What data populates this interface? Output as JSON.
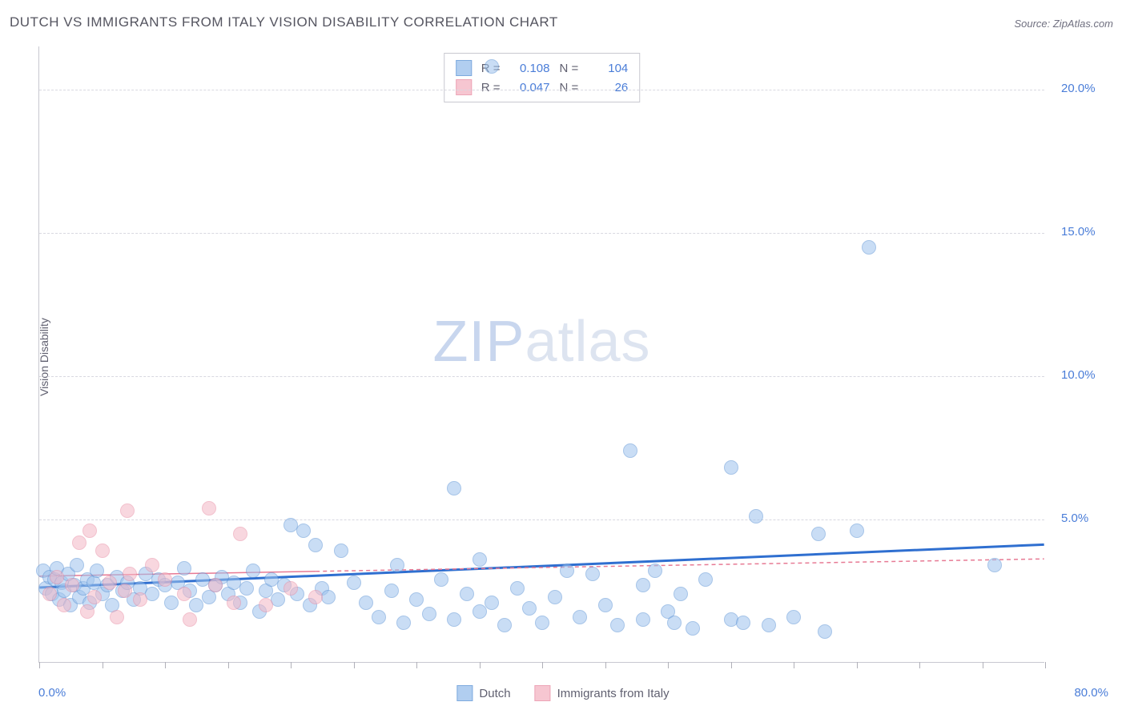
{
  "title": "DUTCH VS IMMIGRANTS FROM ITALY VISION DISABILITY CORRELATION CHART",
  "source": "Source: ZipAtlas.com",
  "y_axis_title": "Vision Disability",
  "watermark": {
    "bold": "ZIP",
    "light": "atlas"
  },
  "chart": {
    "type": "scatter",
    "background_color": "#ffffff",
    "grid_color": "#d8d8e0",
    "axis_color": "#c8c8d0",
    "text_color": "#606070",
    "value_color": "#4a7dd8",
    "xlim": [
      0,
      80
    ],
    "ylim": [
      0,
      21.5
    ],
    "x_ticks": [
      0,
      5,
      10,
      15,
      20,
      25,
      30,
      35,
      40,
      45,
      50,
      55,
      60,
      65,
      70,
      75,
      80
    ],
    "x_tick_labels": {
      "0": "0.0%",
      "80": "80.0%"
    },
    "y_grid": [
      5,
      10,
      15,
      20
    ],
    "y_tick_labels": {
      "5": "5.0%",
      "10": "10.0%",
      "15": "15.0%",
      "20": "20.0%"
    },
    "marker_radius": 9,
    "series": [
      {
        "name": "Dutch",
        "fill": "#9ec3ed",
        "stroke": "#5f95d6",
        "fill_opacity": 0.55,
        "R": "0.108",
        "N": "104",
        "trend": {
          "y_at_x0": 2.6,
          "y_at_x80": 4.1,
          "stroke": "#2f6fd0",
          "width": 3,
          "dash": null,
          "extrapolate_dash": null
        },
        "points": [
          [
            0.3,
            3.2
          ],
          [
            0.5,
            2.6
          ],
          [
            0.8,
            3.0
          ],
          [
            1.0,
            2.4
          ],
          [
            1.2,
            2.9
          ],
          [
            1.4,
            3.3
          ],
          [
            1.6,
            2.2
          ],
          [
            1.8,
            2.8
          ],
          [
            2.0,
            2.5
          ],
          [
            2.3,
            3.1
          ],
          [
            2.5,
            2.0
          ],
          [
            2.8,
            2.7
          ],
          [
            3.0,
            3.4
          ],
          [
            3.2,
            2.3
          ],
          [
            3.5,
            2.6
          ],
          [
            3.8,
            2.9
          ],
          [
            4.0,
            2.1
          ],
          [
            4.3,
            2.8
          ],
          [
            4.6,
            3.2
          ],
          [
            5.0,
            2.4
          ],
          [
            5.4,
            2.7
          ],
          [
            5.8,
            2.0
          ],
          [
            6.2,
            3.0
          ],
          [
            6.6,
            2.5
          ],
          [
            7.0,
            2.8
          ],
          [
            7.5,
            2.2
          ],
          [
            8.0,
            2.6
          ],
          [
            8.5,
            3.1
          ],
          [
            9.0,
            2.4
          ],
          [
            9.5,
            2.9
          ],
          [
            10.0,
            2.7
          ],
          [
            10.5,
            2.1
          ],
          [
            11.0,
            2.8
          ],
          [
            11.5,
            3.3
          ],
          [
            12.0,
            2.5
          ],
          [
            12.5,
            2.0
          ],
          [
            13.0,
            2.9
          ],
          [
            13.5,
            2.3
          ],
          [
            14.0,
            2.7
          ],
          [
            14.5,
            3.0
          ],
          [
            15.0,
            2.4
          ],
          [
            15.5,
            2.8
          ],
          [
            16.0,
            2.1
          ],
          [
            16.5,
            2.6
          ],
          [
            17.0,
            3.2
          ],
          [
            17.5,
            1.8
          ],
          [
            18.0,
            2.5
          ],
          [
            18.5,
            2.9
          ],
          [
            19.0,
            2.2
          ],
          [
            19.5,
            2.7
          ],
          [
            20.0,
            4.8
          ],
          [
            20.5,
            2.4
          ],
          [
            21.0,
            4.6
          ],
          [
            21.5,
            2.0
          ],
          [
            22.0,
            4.1
          ],
          [
            22.5,
            2.6
          ],
          [
            23.0,
            2.3
          ],
          [
            24.0,
            3.9
          ],
          [
            25.0,
            2.8
          ],
          [
            26.0,
            2.1
          ],
          [
            27.0,
            1.6
          ],
          [
            28.0,
            2.5
          ],
          [
            29.0,
            1.4
          ],
          [
            28.5,
            3.4
          ],
          [
            30.0,
            2.2
          ],
          [
            31.0,
            1.7
          ],
          [
            32.0,
            2.9
          ],
          [
            33.0,
            1.5
          ],
          [
            33.0,
            6.1
          ],
          [
            34.0,
            2.4
          ],
          [
            35.0,
            1.8
          ],
          [
            35.0,
            3.6
          ],
          [
            36.0,
            2.1
          ],
          [
            37.0,
            1.3
          ],
          [
            38.0,
            2.6
          ],
          [
            39.0,
            1.9
          ],
          [
            40.0,
            1.4
          ],
          [
            41.0,
            2.3
          ],
          [
            42.0,
            3.2
          ],
          [
            43.0,
            1.6
          ],
          [
            44.0,
            3.1
          ],
          [
            45.0,
            2.0
          ],
          [
            46.0,
            1.3
          ],
          [
            47.0,
            7.4
          ],
          [
            48.0,
            2.7
          ],
          [
            48.0,
            1.5
          ],
          [
            49.0,
            3.2
          ],
          [
            50.0,
            1.8
          ],
          [
            51.0,
            2.4
          ],
          [
            52.0,
            1.2
          ],
          [
            53.0,
            2.9
          ],
          [
            36.0,
            20.8
          ],
          [
            55.0,
            1.5
          ],
          [
            55.0,
            6.8
          ],
          [
            57.0,
            5.1
          ],
          [
            58.0,
            1.3
          ],
          [
            60.0,
            1.6
          ],
          [
            62.0,
            4.5
          ],
          [
            62.5,
            1.1
          ],
          [
            65.0,
            4.6
          ],
          [
            66.0,
            14.5
          ],
          [
            76.0,
            3.4
          ],
          [
            56.0,
            1.4
          ],
          [
            50.5,
            1.4
          ]
        ]
      },
      {
        "name": "Immigrants from Italy",
        "fill": "#f4b8c6",
        "stroke": "#e98fa6",
        "fill_opacity": 0.55,
        "R": "0.047",
        "N": "26",
        "trend": {
          "y_at_x0": 3.0,
          "y_at_x80": 3.6,
          "stroke": "#e77a94",
          "width": 1.5,
          "dash": null,
          "extrapolate_from_x": 22,
          "extrapolate_dash": "5,4"
        },
        "points": [
          [
            0.8,
            2.4
          ],
          [
            1.4,
            3.0
          ],
          [
            2.0,
            2.0
          ],
          [
            2.6,
            2.7
          ],
          [
            3.2,
            4.2
          ],
          [
            3.8,
            1.8
          ],
          [
            4.0,
            4.6
          ],
          [
            4.4,
            2.3
          ],
          [
            5.0,
            3.9
          ],
          [
            5.6,
            2.8
          ],
          [
            6.2,
            1.6
          ],
          [
            7.0,
            5.3
          ],
          [
            6.8,
            2.5
          ],
          [
            7.2,
            3.1
          ],
          [
            8.0,
            2.2
          ],
          [
            9.0,
            3.4
          ],
          [
            10.0,
            2.9
          ],
          [
            11.5,
            2.4
          ],
          [
            12.0,
            1.5
          ],
          [
            13.5,
            5.4
          ],
          [
            14.0,
            2.7
          ],
          [
            16.0,
            4.5
          ],
          [
            15.5,
            2.1
          ],
          [
            18.0,
            2.0
          ],
          [
            20.0,
            2.6
          ],
          [
            22.0,
            2.3
          ]
        ]
      }
    ]
  },
  "legend": {
    "items": [
      {
        "label": "Dutch",
        "fill": "#9ec3ed",
        "stroke": "#5f95d6"
      },
      {
        "label": "Immigrants from Italy",
        "fill": "#f4b8c6",
        "stroke": "#e98fa6"
      }
    ]
  }
}
